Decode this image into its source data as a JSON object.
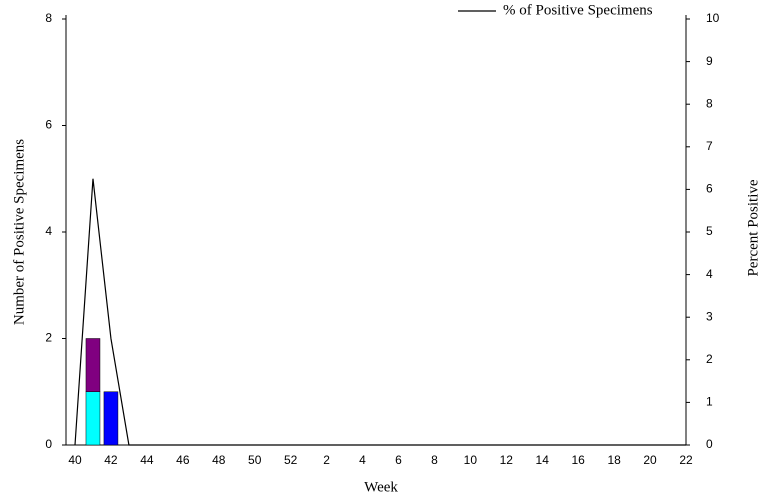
{
  "chart_data": {
    "type": "bar+line",
    "xlabel": "Week",
    "ylabel": "Number of Positive Specimens",
    "y2label": "Percent Positive",
    "categories": [
      "40",
      null,
      "42",
      null,
      "44",
      null,
      "46",
      null,
      "48",
      null,
      "50",
      null,
      "52",
      null,
      "2",
      null,
      "4",
      null,
      "6",
      null,
      "8",
      null,
      "10",
      null,
      "12",
      null,
      "14",
      null,
      "16",
      null,
      "18",
      null,
      "20",
      null,
      "22"
    ],
    "ylim": [
      0,
      8
    ],
    "yticks": [
      0,
      2,
      4,
      6,
      8
    ],
    "y2lim": [
      0,
      10
    ],
    "y2ticks": [
      0,
      1,
      2,
      3,
      4,
      5,
      6,
      7,
      8,
      9,
      10
    ],
    "legend": "upper right",
    "series": [
      {
        "type": "bar",
        "color": "#00ffff",
        "values": [
          0,
          1,
          0,
          0,
          0,
          0,
          0,
          0,
          0,
          0,
          0,
          0,
          0,
          0,
          0,
          0,
          0,
          0,
          0,
          0,
          0,
          0,
          0,
          0,
          0,
          0,
          0,
          0,
          0,
          0,
          0,
          0,
          0,
          0,
          0
        ]
      },
      {
        "type": "bar",
        "color": "#800080",
        "values": [
          0,
          1,
          0,
          0,
          0,
          0,
          0,
          0,
          0,
          0,
          0,
          0,
          0,
          0,
          0,
          0,
          0,
          0,
          0,
          0,
          0,
          0,
          0,
          0,
          0,
          0,
          0,
          0,
          0,
          0,
          0,
          0,
          0,
          0,
          0
        ]
      },
      {
        "type": "bar",
        "color": "#0000ff",
        "values": [
          0,
          0,
          1,
          0,
          0,
          0,
          0,
          0,
          0,
          0,
          0,
          0,
          0,
          0,
          0,
          0,
          0,
          0,
          0,
          0,
          0,
          0,
          0,
          0,
          0,
          0,
          0,
          0,
          0,
          0,
          0,
          0,
          0,
          0,
          0
        ]
      },
      {
        "type": "line",
        "name": "% of Positive Specimens",
        "color": "#000000",
        "axis": "y2",
        "values": [
          0,
          6.25,
          2.5,
          0,
          0,
          0,
          0,
          0,
          0,
          0,
          0,
          0,
          0,
          0,
          0,
          0,
          0,
          0,
          0,
          0,
          0,
          0,
          0,
          0,
          0,
          0,
          0,
          0,
          0,
          0,
          0,
          0,
          0,
          0,
          0
        ]
      }
    ]
  }
}
